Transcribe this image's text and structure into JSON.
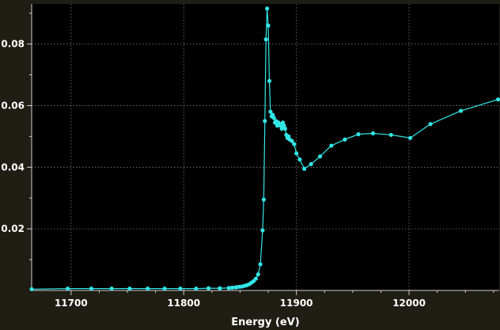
{
  "chart_data": {
    "type": "line",
    "title": "",
    "xlabel": "Energy (eV)",
    "ylabel": "",
    "xlim": [
      11665,
      12080
    ],
    "ylim": [
      0,
      0.093
    ],
    "grid": true,
    "x_ticks": [
      11700,
      11800,
      11900,
      12000
    ],
    "y_ticks": [
      0.02,
      0.04,
      0.06,
      0.08
    ],
    "x_minor_ticks": [
      11725,
      11750,
      11775,
      11825,
      11850,
      11875,
      11925,
      11950,
      11975,
      12025,
      12050,
      12075
    ],
    "y_minor_ticks": [
      0.01,
      0.03,
      0.05,
      0.07,
      0.09
    ],
    "series": [
      {
        "name": "",
        "color": "#33e6e6",
        "x": [
          11665,
          11697,
          11718,
          11736,
          11752,
          11768,
          11783,
          11797,
          11811,
          11822,
          11832,
          11840,
          11843,
          11846,
          11848,
          11850,
          11852,
          11854,
          11856,
          11858,
          11860,
          11862,
          11864,
          11866,
          11868,
          11870,
          11871,
          11872,
          11873,
          11874,
          11875,
          11876,
          11877,
          11878,
          11879,
          11880,
          11881,
          11882,
          11883,
          11884,
          11885,
          11886,
          11887,
          11888,
          11889,
          11890,
          11891,
          11892,
          11893,
          11894,
          11896,
          11898,
          11900,
          11903,
          11907,
          11913,
          11921,
          11931,
          11943,
          11955,
          11968,
          11984,
          12001,
          12019,
          12046,
          12079
        ],
        "y": [
          0.0004,
          0.0006,
          0.0006,
          0.0006,
          0.0006,
          0.0006,
          0.0006,
          0.0006,
          0.0006,
          0.0007,
          0.0007,
          0.0008,
          0.0009,
          0.001,
          0.0011,
          0.0012,
          0.0013,
          0.0015,
          0.0017,
          0.002,
          0.0025,
          0.003,
          0.0038,
          0.0052,
          0.0085,
          0.0195,
          0.0295,
          0.055,
          0.0815,
          0.0915,
          0.086,
          0.068,
          0.058,
          0.0565,
          0.057,
          0.056,
          0.0545,
          0.055,
          0.0535,
          0.0545,
          0.054,
          0.0535,
          0.0525,
          0.0545,
          0.0535,
          0.0525,
          0.0505,
          0.0495,
          0.05,
          0.049,
          0.0485,
          0.0475,
          0.0445,
          0.0425,
          0.0395,
          0.041,
          0.0435,
          0.047,
          0.049,
          0.0507,
          0.051,
          0.0505,
          0.0495,
          0.054,
          0.0583,
          0.062
        ]
      }
    ]
  }
}
